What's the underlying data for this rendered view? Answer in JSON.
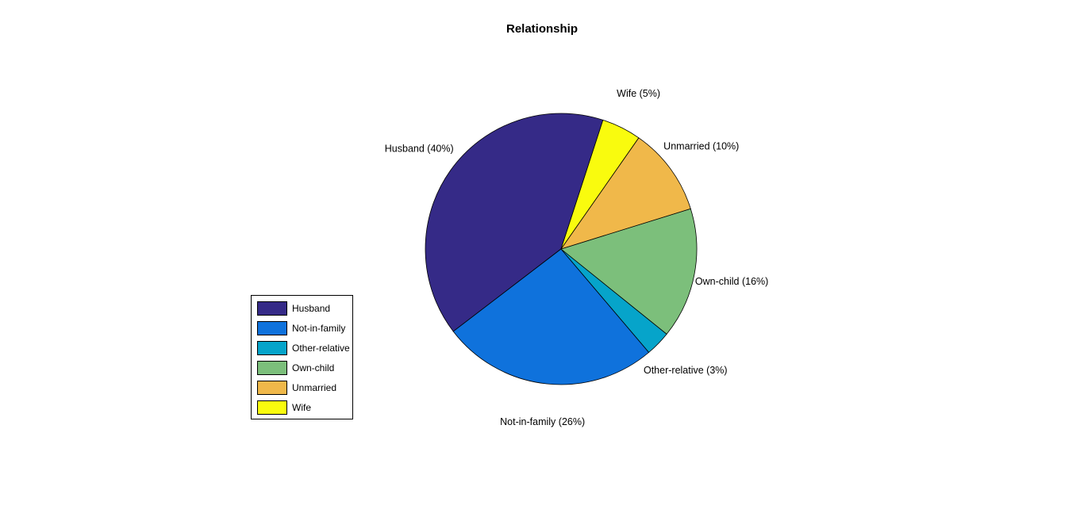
{
  "chart_data": {
    "type": "pie",
    "title": "Relationship",
    "categories": [
      "Husband",
      "Not-in-family",
      "Other-relative",
      "Own-child",
      "Unmarried",
      "Wife"
    ],
    "values": [
      40.4,
      25.8,
      3.0,
      15.6,
      10.5,
      4.7
    ],
    "slice_labels": [
      "Husband (40%)",
      "Not-in-family (26%)",
      "Other-relative  (3%)",
      "Own-child (16%)",
      "Unmarried (10%)",
      "Wife  (5%)"
    ],
    "colors": [
      "#352a87",
      "#0f72dc",
      "#06a4ca",
      "#7cbf7b",
      "#f0b84a",
      "#f9fb0e"
    ],
    "legend_position": "left"
  }
}
